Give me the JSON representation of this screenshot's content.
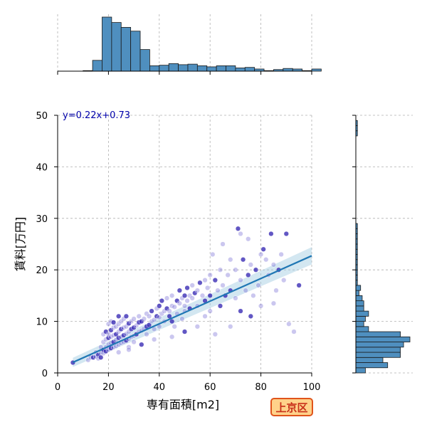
{
  "chart_data": {
    "type": "scatter",
    "title": "",
    "xlabel": "専有面積[m2]",
    "ylabel": "賃料[万円]",
    "xlim": [
      0,
      100
    ],
    "ylim": [
      0,
      50
    ],
    "xticks": [
      "0",
      "20",
      "40",
      "60",
      "80",
      "100"
    ],
    "yticks": [
      "0",
      "10",
      "20",
      "30",
      "40",
      "50"
    ],
    "grid": true,
    "annotation": "y=0.22x+0.73",
    "district_label": "上京区",
    "regression": {
      "slope": 0.22,
      "intercept": 0.73,
      "x_range": [
        6,
        100
      ]
    },
    "points": [
      [
        6,
        2
      ],
      [
        12,
        2.5
      ],
      [
        13,
        3
      ],
      [
        14,
        3
      ],
      [
        15,
        3.2
      ],
      [
        15,
        4
      ],
      [
        16,
        3.5
      ],
      [
        16,
        2.8
      ],
      [
        17,
        4
      ],
      [
        17,
        3
      ],
      [
        17,
        5
      ],
      [
        18,
        3.8
      ],
      [
        18,
        4.5
      ],
      [
        18,
        6
      ],
      [
        18,
        7.5
      ],
      [
        19,
        4.2
      ],
      [
        19,
        5
      ],
      [
        19,
        6.5
      ],
      [
        19,
        8
      ],
      [
        20,
        4.5
      ],
      [
        20,
        5.5
      ],
      [
        20,
        6.8
      ],
      [
        20,
        7.5
      ],
      [
        20,
        9.5
      ],
      [
        21,
        4.8
      ],
      [
        21,
        5.8
      ],
      [
        21,
        7
      ],
      [
        21,
        8.3
      ],
      [
        21,
        10
      ],
      [
        22,
        5
      ],
      [
        22,
        6
      ],
      [
        22,
        7.3
      ],
      [
        22,
        8.8
      ],
      [
        22,
        9.8
      ],
      [
        23,
        5.2
      ],
      [
        23,
        6.4
      ],
      [
        23,
        7.5
      ],
      [
        23,
        9
      ],
      [
        24,
        5.5
      ],
      [
        24,
        6.8
      ],
      [
        24,
        8
      ],
      [
        24,
        9.5
      ],
      [
        24,
        11
      ],
      [
        25,
        5.8
      ],
      [
        25,
        7
      ],
      [
        25,
        8.5
      ],
      [
        25,
        10
      ],
      [
        26,
        6
      ],
      [
        26,
        7.3
      ],
      [
        26,
        8.8
      ],
      [
        26,
        10.5
      ],
      [
        27,
        6.3
      ],
      [
        27,
        7.6
      ],
      [
        27,
        9
      ],
      [
        27,
        11
      ],
      [
        28,
        6.6
      ],
      [
        28,
        8
      ],
      [
        28,
        9.6
      ],
      [
        28,
        5
      ],
      [
        29,
        7
      ],
      [
        29,
        8.5
      ],
      [
        29,
        10
      ],
      [
        30,
        7.2
      ],
      [
        30,
        8.8
      ],
      [
        30,
        10.5
      ],
      [
        30,
        6
      ],
      [
        31,
        7.5
      ],
      [
        31,
        9.2
      ],
      [
        32,
        8
      ],
      [
        32,
        9.8
      ],
      [
        32,
        11
      ],
      [
        33,
        8.2
      ],
      [
        33,
        10
      ],
      [
        34,
        8.6
      ],
      [
        34,
        10.5
      ],
      [
        35,
        9
      ],
      [
        35,
        11.5
      ],
      [
        35,
        7.5
      ],
      [
        36,
        9.3
      ],
      [
        36,
        11
      ],
      [
        37,
        10
      ],
      [
        37,
        12
      ],
      [
        38,
        10.3
      ],
      [
        38,
        8.5
      ],
      [
        39,
        11
      ],
      [
        39,
        12.5
      ],
      [
        40,
        10.8
      ],
      [
        40,
        13
      ],
      [
        40,
        9
      ],
      [
        41,
        11.5
      ],
      [
        41,
        14
      ],
      [
        42,
        12
      ],
      [
        42,
        10
      ],
      [
        43,
        12.5
      ],
      [
        43,
        14.5
      ],
      [
        44,
        12
      ],
      [
        44,
        11
      ],
      [
        45,
        13
      ],
      [
        45,
        15
      ],
      [
        45,
        10
      ],
      [
        46,
        12.8
      ],
      [
        46,
        9
      ],
      [
        47,
        14
      ],
      [
        47,
        11.5
      ],
      [
        48,
        13.5
      ],
      [
        48,
        16
      ],
      [
        49,
        14.5
      ],
      [
        49,
        10.5
      ],
      [
        50,
        15
      ],
      [
        50,
        13
      ],
      [
        50,
        12
      ],
      [
        51,
        16.5
      ],
      [
        51,
        14
      ],
      [
        52,
        15
      ],
      [
        52,
        12.5
      ],
      [
        53,
        17
      ],
      [
        53,
        14.5
      ],
      [
        54,
        15.5
      ],
      [
        55,
        16
      ],
      [
        55,
        13
      ],
      [
        56,
        17.5
      ],
      [
        57,
        15
      ],
      [
        58,
        18
      ],
      [
        58,
        14
      ],
      [
        59,
        16.5
      ],
      [
        60,
        19
      ],
      [
        60,
        15
      ],
      [
        60,
        12
      ],
      [
        61,
        23
      ],
      [
        62,
        18
      ],
      [
        63,
        16
      ],
      [
        64,
        20
      ],
      [
        64,
        13
      ],
      [
        65,
        25
      ],
      [
        65,
        17
      ],
      [
        66,
        15
      ],
      [
        67,
        19
      ],
      [
        68,
        22
      ],
      [
        68,
        16
      ],
      [
        70,
        20
      ],
      [
        70,
        14.5
      ],
      [
        71,
        28
      ],
      [
        72,
        18
      ],
      [
        72,
        27
      ],
      [
        73,
        22
      ],
      [
        74,
        16
      ],
      [
        75,
        26
      ],
      [
        75,
        19
      ],
      [
        76,
        21
      ],
      [
        77,
        15
      ],
      [
        78,
        20
      ],
      [
        79,
        17
      ],
      [
        80,
        23
      ],
      [
        81,
        24
      ],
      [
        82,
        22
      ],
      [
        83,
        19
      ],
      [
        84,
        27
      ],
      [
        85,
        21
      ],
      [
        86,
        16
      ],
      [
        87,
        20
      ],
      [
        88,
        23
      ],
      [
        89,
        18
      ],
      [
        90,
        27
      ],
      [
        91,
        9.5
      ],
      [
        93,
        8
      ],
      [
        95,
        17
      ],
      [
        62,
        7.5
      ],
      [
        68,
        9
      ],
      [
        76,
        11
      ],
      [
        80,
        13
      ],
      [
        85,
        13.5
      ],
      [
        72,
        12
      ],
      [
        55,
        9
      ],
      [
        58,
        11
      ],
      [
        50,
        8
      ],
      [
        45,
        7
      ],
      [
        38,
        6.5
      ],
      [
        33,
        5.5
      ],
      [
        28,
        4.5
      ],
      [
        24,
        4
      ]
    ],
    "x_hist": {
      "bin_edges_start": 10,
      "bin_width": 3.75,
      "counts": [
        1,
        20,
        100,
        90,
        81,
        74,
        40,
        10,
        11,
        14,
        12,
        13,
        10,
        8,
        10,
        10,
        6,
        7,
        4,
        1,
        3,
        5,
        4,
        1,
        4
      ]
    },
    "y_hist": {
      "bin_start": 0,
      "bin_width": 1,
      "counts": [
        6,
        20,
        17,
        28,
        28,
        30,
        34,
        28,
        8,
        5,
        6,
        8,
        5,
        5,
        4,
        2,
        3,
        1,
        1,
        1,
        1,
        1,
        1,
        1,
        1,
        1,
        1,
        1,
        1,
        0,
        0,
        0,
        0,
        0,
        0,
        0,
        0,
        0,
        0,
        0,
        0,
        0,
        0,
        0,
        0,
        0,
        1,
        1,
        1,
        0
      ]
    }
  }
}
